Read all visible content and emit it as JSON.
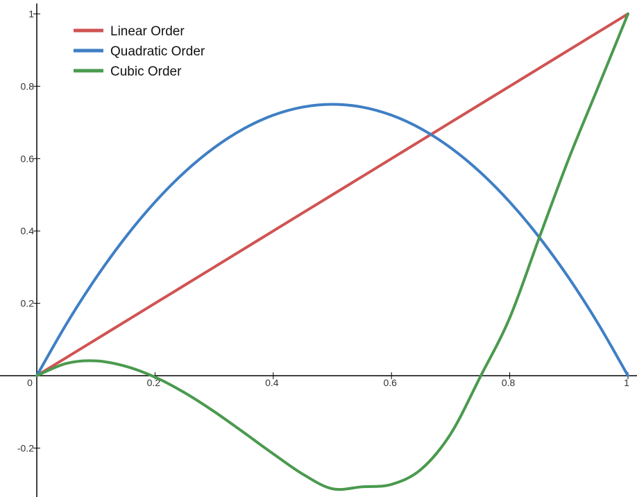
{
  "chart_data": {
    "type": "line",
    "title": "",
    "xlabel": "",
    "ylabel": "",
    "xlim": [
      0,
      1
    ],
    "ylim": [
      -0.31,
      1.0
    ],
    "grid": false,
    "legend_position": "top-left",
    "x_ticks": [
      0,
      0.2,
      0.4,
      0.6,
      0.8,
      1
    ],
    "x_tick_labels": [
      "0",
      "0.2",
      "0.4",
      "0.6",
      "0.8",
      "1"
    ],
    "y_ticks": [
      -0.2,
      0.2,
      0.4,
      0.6,
      0.8,
      1
    ],
    "y_tick_labels": [
      "-0.2",
      "0.2",
      "0.4",
      "0.6",
      "0.8",
      "1"
    ],
    "x": [
      0,
      0.05,
      0.1,
      0.15,
      0.2,
      0.25,
      0.3,
      0.35,
      0.4,
      0.45,
      0.5,
      0.55,
      0.6,
      0.65,
      0.7,
      0.75,
      0.8,
      0.85,
      0.9,
      0.95,
      1
    ],
    "series": [
      {
        "name": "Linear Order",
        "color": "#d05353",
        "values": [
          0,
          0.05,
          0.1,
          0.15,
          0.2,
          0.25,
          0.3,
          0.35,
          0.4,
          0.45,
          0.5,
          0.55,
          0.6,
          0.65,
          0.7,
          0.75,
          0.8,
          0.85,
          0.9,
          0.95,
          1
        ]
      },
      {
        "name": "Quadratic Order",
        "color": "#3f7fc4",
        "values": [
          0,
          0.1425,
          0.27,
          0.3825,
          0.48,
          0.5625,
          0.63,
          0.6825,
          0.72,
          0.7425,
          0.75,
          0.7425,
          0.72,
          0.6825,
          0.63,
          0.5625,
          0.48,
          0.3825,
          0.27,
          0.1425,
          0
        ]
      },
      {
        "name": "Cubic Order",
        "color": "#4a9a4e",
        "values": [
          0,
          0.0339,
          0.041,
          0.0262,
          -0.004,
          -0.0469,
          -0.099,
          -0.1569,
          -0.216,
          -0.2722,
          -0.3125,
          -0.3071,
          -0.3004,
          -0.2589,
          -0.161,
          -0.0037,
          0.16,
          0.3819,
          0.6003,
          0.7995,
          1
        ]
      }
    ]
  }
}
